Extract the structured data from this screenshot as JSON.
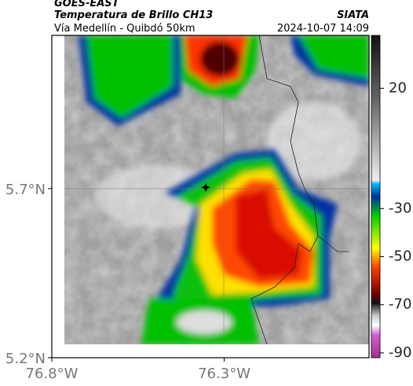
{
  "header": {
    "title": "GOES-EAST",
    "subtitle": "Temperatura de Brillo CH13",
    "source": "SIATA",
    "route": "Vía Medellín - Quibdó 50km",
    "datetime": "2024-10-07 14:09"
  },
  "map": {
    "xlim": [
      -76.8,
      -75.88
    ],
    "ylim": [
      5.2,
      6.153
    ],
    "xticks": [
      {
        "value": -76.8,
        "label": "76.8°W"
      },
      {
        "value": -76.3,
        "label": "76.3°W"
      }
    ],
    "yticks": [
      {
        "value": 5.2,
        "label": "5.2°N"
      },
      {
        "value": 5.7,
        "label": "5.7°N"
      }
    ]
  },
  "colorbar": {
    "clim": [
      -92,
      42
    ],
    "ticks": [
      20,
      -30,
      -50,
      -70,
      -90
    ]
  }
}
